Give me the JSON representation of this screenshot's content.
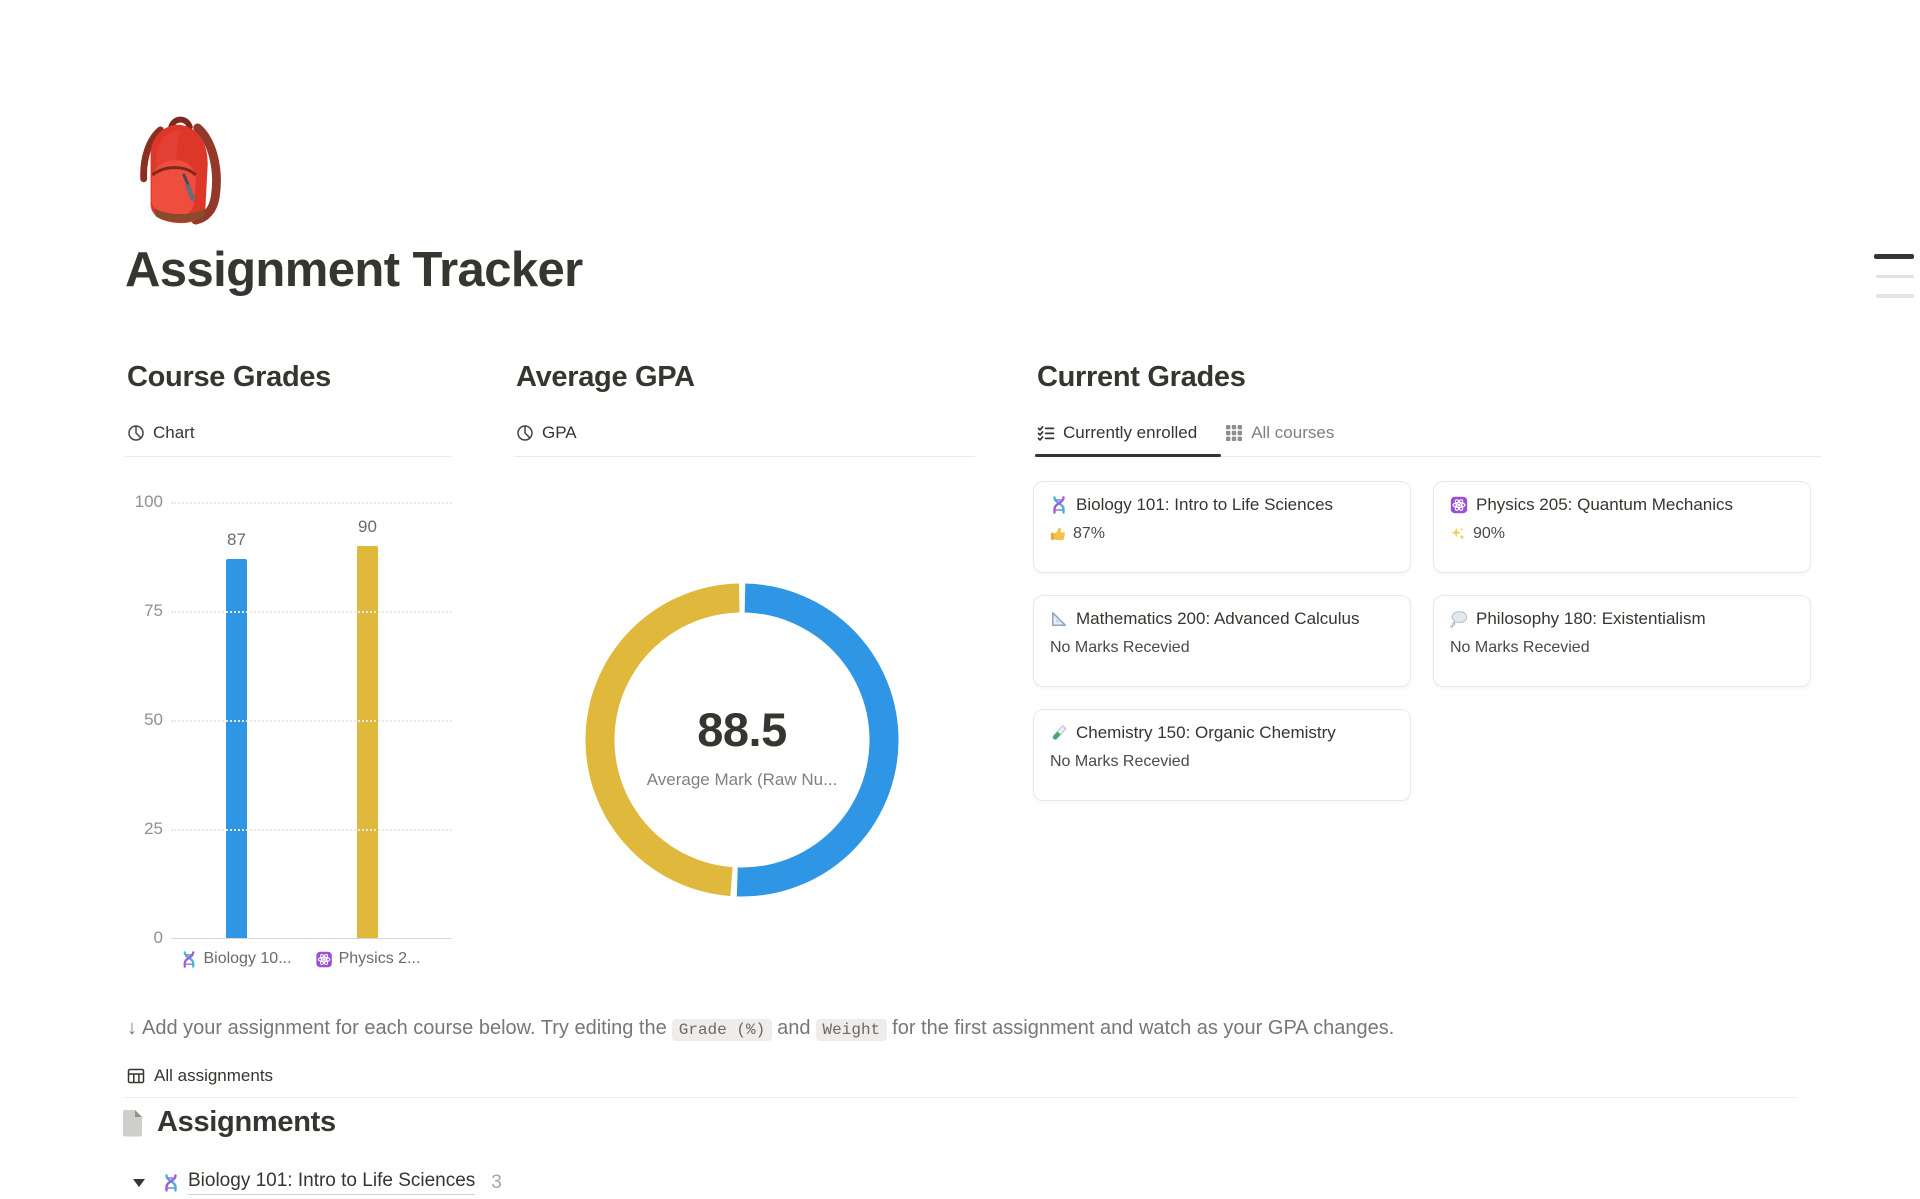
{
  "page": {
    "icon": "backpack-emoji",
    "title": "Assignment Tracker"
  },
  "sections": {
    "course_grades": {
      "heading": "Course Grades",
      "view_tab": {
        "icon": "chart-view",
        "label": "Chart"
      }
    },
    "average_gpa": {
      "heading": "Average GPA",
      "view_tab": {
        "icon": "chart-view",
        "label": "GPA"
      }
    },
    "current_grades": {
      "heading": "Current Grades",
      "tabs": [
        {
          "icon": "checklist",
          "label": "Currently enrolled",
          "active": true
        },
        {
          "icon": "grid",
          "label": "All courses",
          "active": false
        }
      ],
      "cards": [
        {
          "icon": "dna-emoji",
          "title": "Biology 101: Intro to Life Sciences",
          "mark_icon": "thumbs-up-emoji",
          "mark": "87%"
        },
        {
          "icon": "atom-emoji",
          "title": "Physics 205: Quantum Mechanics",
          "mark_icon": "sparkles-emoji",
          "mark": "90%"
        },
        {
          "icon": "triangle-ruler-emoji",
          "title": "Mathematics 200: Advanced Calculus",
          "mark": "No Marks Recevied"
        },
        {
          "icon": "thought-balloon-emoji",
          "title": "Philosophy 180: Existentialism",
          "mark": "No Marks Recevied"
        },
        {
          "icon": "test-tube-emoji",
          "title": "Chemistry 150: Organic Chemistry",
          "mark": "No Marks Recevied"
        }
      ]
    }
  },
  "instruction": {
    "arrow": "↓",
    "text1": "Add your assignment for each course below. Try editing the",
    "code1": "Grade (%)",
    "text2": "and",
    "code2": "Weight",
    "text3": "for the first assignment and watch as your GPA changes."
  },
  "assignments": {
    "view_tab": {
      "icon": "table-view",
      "label": "All assignments"
    },
    "heading_icon": "page",
    "heading": "Assignments",
    "groups": [
      {
        "state": "expanded",
        "icon": "dna-emoji",
        "title": "Biology 101: Intro to Life Sciences",
        "count": "3"
      }
    ]
  },
  "chart_data": [
    {
      "type": "bar",
      "title": "Course Grades",
      "view": "Chart",
      "categories": [
        "Biology 101: Intro to Life Sciences",
        "Physics 205: Quantum Mechanics"
      ],
      "tick_labels": [
        "Biology 10...",
        "Physics 2..."
      ],
      "tick_icons": [
        "dna-emoji",
        "atom-emoji"
      ],
      "values": [
        87,
        90
      ],
      "data_labels": [
        "87",
        "90"
      ],
      "bar_colors": [
        "#2f96e6",
        "#e0b83c"
      ],
      "yticks": [
        0,
        25,
        50,
        75,
        100
      ],
      "ylim": [
        0,
        100
      ],
      "grid": "dotted-horizontal",
      "legend": "none"
    },
    {
      "type": "donut",
      "title": "Average GPA",
      "view": "GPA",
      "center_value": "88.5",
      "center_label": "Average Mark (Raw Nu...",
      "direction": "clockwise",
      "start_angle_deg": 0,
      "slices": [
        {
          "value": 90,
          "color": "#2f96e6"
        },
        {
          "value": 87,
          "color": "#e0b83c"
        }
      ]
    }
  ]
}
